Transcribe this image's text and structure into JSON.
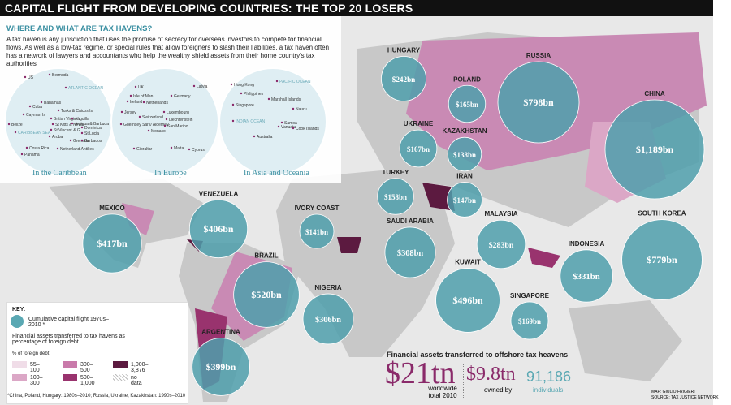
{
  "header": {
    "title": "CAPITAL FLIGHT FROM DEVELOPING COUNTRIES: THE TOP 20 LOSERS"
  },
  "intro": {
    "title": "WHERE AND WHAT ARE TAX HAVENS?",
    "text": "A tax haven is any jurisdiction that uses the promise of secrecy for overseas investors to compete for financial flows. As well as a low-tax regime, or special rules that allow foreigners to slash their liabilities, a tax haven often has a network of lawyers and accountants who help the wealthy shield assets from their home country's tax authorities"
  },
  "insets": [
    {
      "caption": "In the Caribbean",
      "places": [
        "US",
        "Bermuda",
        "ATLANTIC OCEAN",
        "Bahamas",
        "Cuba",
        "Cayman Is",
        "Turks & Caicos Is",
        "British Virgin Is",
        "Anguilla",
        "Belize",
        "St Kitts & Nevis",
        "Antigua & Barbuda",
        "St Vincent & G",
        "Dominica",
        "St Lucia",
        "Aruba",
        "Grenada",
        "Barbados",
        "Costa Rica",
        "Netherland Antilles",
        "Panama",
        "CARIBBEAN SEA"
      ]
    },
    {
      "caption": "In Europe",
      "places": [
        "UK",
        "Isle of Man",
        "Ireland",
        "Netherlands",
        "Germany",
        "Latvia",
        "Jersey",
        "Switzerland",
        "Luxembourg",
        "Guernsey Sark/ Alderney",
        "Liechtenstein",
        "San Marino",
        "Monaco",
        "Gibraltar",
        "Malta",
        "Cyprus"
      ]
    },
    {
      "caption": "In Asia and Oceania",
      "places": [
        "Hong Kong",
        "PACIFIC OCEAN",
        "Philippines",
        "Singapore",
        "Marshall Islands",
        "Nauru",
        "INDIAN OCEAN",
        "Samoa",
        "Vanuatu",
        "Cook Islands",
        "Australia"
      ]
    }
  ],
  "countries": [
    {
      "name": "HUNGARY",
      "value": 242,
      "value_label": "$242bn"
    },
    {
      "name": "POLAND",
      "value": 165,
      "value_label": "$165bn"
    },
    {
      "name": "RUSSIA",
      "value": 798,
      "value_label": "$798bn"
    },
    {
      "name": "CHINA",
      "value": 1189,
      "value_label": "$1,189bn"
    },
    {
      "name": "UKRAINE",
      "value": 167,
      "value_label": "$167bn"
    },
    {
      "name": "KAZAKHSTAN",
      "value": 138,
      "value_label": "$138bn"
    },
    {
      "name": "TURKEY",
      "value": 158,
      "value_label": "$158bn"
    },
    {
      "name": "IRAN",
      "value": 147,
      "value_label": "$147bn"
    },
    {
      "name": "SAUDI ARABIA",
      "value": 308,
      "value_label": "$308bn"
    },
    {
      "name": "IVORY COAST",
      "value": 141,
      "value_label": "$141bn"
    },
    {
      "name": "NIGERIA",
      "value": 306,
      "value_label": "$306bn"
    },
    {
      "name": "KUWAIT",
      "value": 496,
      "value_label": "$496bn"
    },
    {
      "name": "MALAYSIA",
      "value": 283,
      "value_label": "$283bn"
    },
    {
      "name": "INDONESIA",
      "value": 331,
      "value_label": "$331bn"
    },
    {
      "name": "SOUTH KOREA",
      "value": 779,
      "value_label": "$779bn"
    },
    {
      "name": "SINGAPORE",
      "value": 169,
      "value_label": "$169bn"
    },
    {
      "name": "VENEZUELA",
      "value": 406,
      "value_label": "$406bn"
    },
    {
      "name": "MEXICO",
      "value": 417,
      "value_label": "$417bn"
    },
    {
      "name": "BRAZIL",
      "value": 520,
      "value_label": "$520bn"
    },
    {
      "name": "ARGENTINA",
      "value": 399,
      "value_label": "$399bn"
    }
  ],
  "key": {
    "title": "KEY:",
    "bubble": "Cumulative capital flight 1970s–2010 *",
    "shading": "Financial assets transferred to tax havens as percentage of foreign debt",
    "scale_title": "% of foreign debt",
    "items": [
      "55–100",
      "300–500",
      "1,000–3,876",
      "100–300",
      "500–1,000",
      "no data"
    ],
    "footnote": "*China, Poland, Hungary: 1980s–2010; Russia, Ukraine, Kazakhstan: 1990s–2010"
  },
  "stats": {
    "title": "Financial assets transferred to offshore tax heavens",
    "total": "$21tn",
    "total_label": "worldwide total 2010",
    "owned": "$9.8tn",
    "owned_label": "owned by",
    "individuals": "91,186",
    "individuals_label": "individuals"
  },
  "credits": {
    "map": "MAP: GIULIO FRIGIERI",
    "source": "SOURCE: TAX JUSTICE NETWORK"
  }
}
